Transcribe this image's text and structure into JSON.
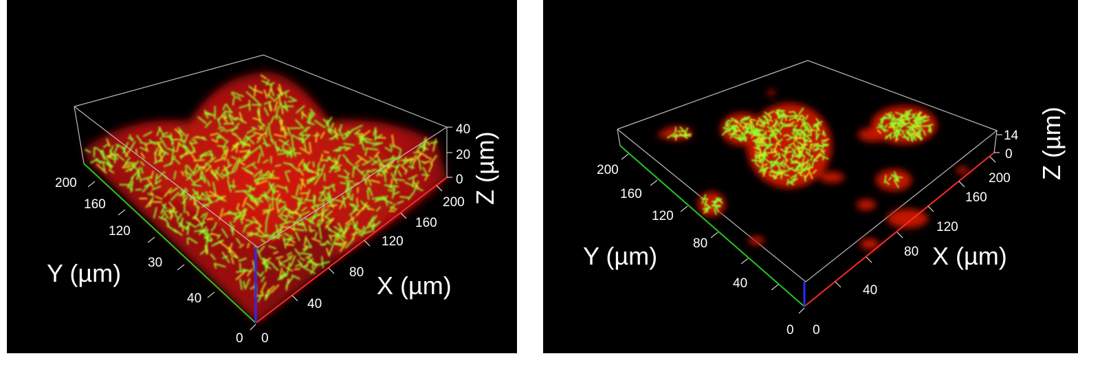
{
  "left": {
    "y_ticks": [
      "200",
      "160",
      "120",
      "30",
      "40",
      "0"
    ],
    "x_ticks": [
      "0",
      "40",
      "80",
      "120",
      "160",
      "200"
    ],
    "z_ticks": [
      "40",
      "20",
      "0"
    ],
    "y_label": "Y (µm)",
    "x_label": "X (µm)",
    "z_label": "Z (µm)"
  },
  "right": {
    "y_ticks": [
      "200",
      "160",
      "120",
      "80",
      "40",
      "0"
    ],
    "x_ticks": [
      "0",
      "40",
      "80",
      "120",
      "160",
      "200"
    ],
    "z_ticks": [
      "14",
      "0"
    ],
    "y_label": "Y (µm)",
    "x_label": "X (µm)",
    "z_label": "Z (µm)"
  },
  "colors": {
    "biofilm_red": "#c41206",
    "cells_green": "#8dff2a",
    "x_axis": "#ff2a2a",
    "y_axis": "#23c823",
    "z_axis": "#2a2aff",
    "box": "#bdbdbd"
  }
}
